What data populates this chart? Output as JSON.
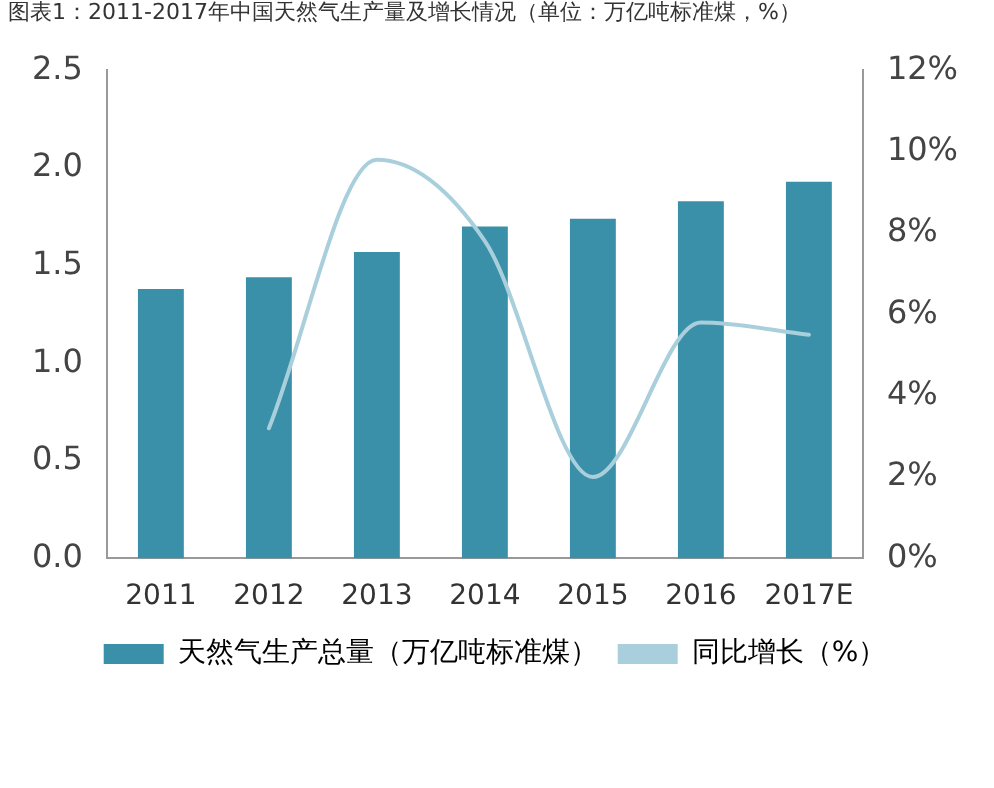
{
  "chart_data": {
    "type": "bar",
    "title": "图表1：2011-2017年中国天然气生产量及增长情况（单位：万亿吨标准煤，%）",
    "categories": [
      "2011",
      "2012",
      "2013",
      "2014",
      "2015",
      "2016",
      "2017E"
    ],
    "series": [
      {
        "name": "天然气生产总量（万亿吨标准煤）",
        "color": "#3a90a8",
        "values": [
          1.38,
          1.44,
          1.57,
          1.7,
          1.74,
          1.83,
          1.93
        ]
      },
      {
        "name": "同比增长（%）",
        "type": "line",
        "axis": "y2",
        "color": "#a8cfdb",
        "values": [
          null,
          3.2,
          9.8,
          7.8,
          2.0,
          5.8,
          5.5
        ]
      }
    ],
    "ylim": [
      0,
      2.5
    ],
    "yticks": [
      {
        "value": 0,
        "label": "0.0"
      },
      {
        "value": 0.5,
        "label": "0.5"
      },
      {
        "value": 1,
        "label": "1.0"
      },
      {
        "value": 1.5,
        "label": "1.5"
      },
      {
        "value": 2,
        "label": "2.0"
      },
      {
        "value": 2.5,
        "label": "2.5"
      }
    ],
    "y2lim": [
      0,
      12
    ],
    "y2ticks": [
      {
        "value": 0,
        "label": "0%"
      },
      {
        "value": 2,
        "label": "2%"
      },
      {
        "value": 4,
        "label": "4%"
      },
      {
        "value": 6,
        "label": "6%"
      },
      {
        "value": 8,
        "label": "8%"
      },
      {
        "value": 10,
        "label": "10%"
      },
      {
        "value": 12,
        "label": "12%"
      }
    ],
    "grid": false,
    "legend": "bottom"
  }
}
